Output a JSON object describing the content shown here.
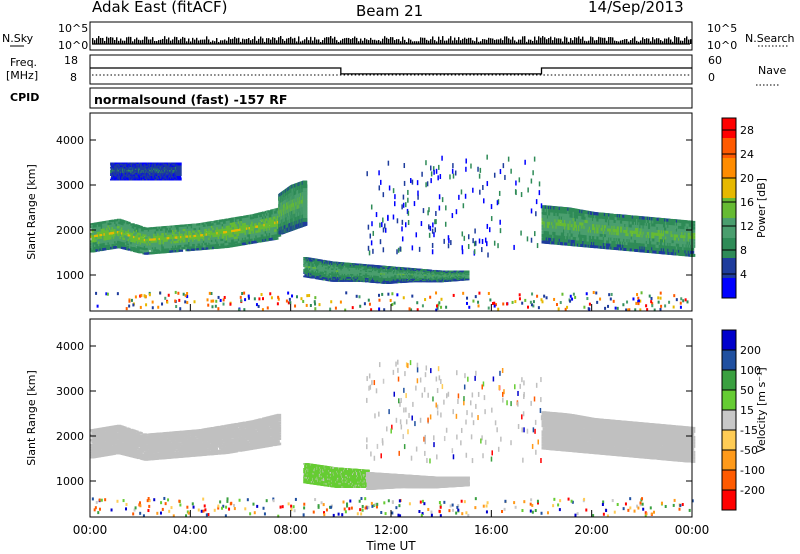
{
  "header": {
    "title": "Adak East (fitACF)",
    "beam": "Beam 21",
    "date": "14/Sep/2013"
  },
  "scan_panels": {
    "nsky": {
      "label": "N.Sky",
      "ticks": [
        "10^5",
        "10^0"
      ]
    },
    "nsearch": {
      "label": "N.Search",
      "ticks": [
        "10^5",
        "10^0"
      ]
    },
    "freq": {
      "label_line1": "Freq.",
      "label_line2": "[MHz]",
      "ticks": [
        "18",
        "8"
      ]
    },
    "nave": {
      "label": "Nave",
      "ticks": [
        "60",
        "0"
      ]
    },
    "cpid": {
      "label": "CPID",
      "text": "normalsound (fast) -157 RF"
    }
  },
  "colors": {
    "power": [
      "#0000ff",
      "#1e3c9c",
      "#2e8b57",
      "#4a9e6e",
      "#66bb33",
      "#e6b800",
      "#ff8c00",
      "#ff5a00",
      "#ff0000"
    ],
    "velocity": [
      "#ff0000",
      "#ff5a00",
      "#ff9a1a",
      "#ffcc55",
      "#c8c8c8",
      "#66cc33",
      "#3aa040",
      "#2050a0",
      "#0000cc"
    ],
    "ground": "#c0c0c0"
  },
  "chart_data": [
    {
      "type": "heatmap",
      "name": "power",
      "ylabel": "Slant Range [km]",
      "ytick_labels": [
        "1000",
        "2000",
        "3000",
        "4000"
      ],
      "ylim": [
        200,
        4600
      ],
      "colorbar": {
        "label": "Power [dB]",
        "ticks": [
          "4",
          "8",
          "12",
          "16",
          "20",
          "24",
          "28"
        ],
        "range": [
          0,
          30
        ]
      },
      "bands": [
        {
          "t0": 0.0,
          "t1": 7.5,
          "r0": [
            1500,
            1600,
            1450,
            1500,
            1550,
            1600,
            1700,
            1800
          ],
          "r1": [
            2150,
            2250,
            2050,
            2100,
            2150,
            2250,
            2350,
            2500
          ],
          "power": 16
        },
        {
          "t0": 7.5,
          "t1": 8.5,
          "r0": [
            1900,
            2000,
            2100
          ],
          "r1": [
            2800,
            3000,
            3100
          ],
          "power": 14
        },
        {
          "t0": 8.5,
          "t1": 15.0,
          "r0": [
            950,
            850,
            850,
            800,
            850,
            850,
            900
          ],
          "r1": [
            1400,
            1300,
            1250,
            1200,
            1150,
            1100,
            1100
          ],
          "power": 12
        },
        {
          "t0": 18.0,
          "t1": 24.0,
          "r0": [
            1700,
            1650,
            1600,
            1550,
            1500,
            1450,
            1400
          ],
          "r1": [
            2550,
            2500,
            2400,
            2350,
            2300,
            2250,
            2200
          ],
          "power": 14
        },
        {
          "t0": 0.8,
          "t1": 3.5,
          "r0": [
            3100,
            3100,
            3100
          ],
          "r1": [
            3500,
            3500,
            3500
          ],
          "power": 6
        }
      ]
    },
    {
      "type": "heatmap",
      "name": "velocity",
      "ylabel": "Slant Range [km]",
      "ytick_labels": [
        "1000",
        "2000",
        "3000",
        "4000"
      ],
      "ylim": [
        200,
        4600
      ],
      "xlabel": "Time UT",
      "xtick_labels": [
        "00:00",
        "04:00",
        "08:00",
        "12:00",
        "16:00",
        "20:00",
        "00:00"
      ],
      "xlim": [
        0,
        24
      ],
      "colorbar": {
        "label": "Velocity [m s⁻¹]",
        "ticks": [
          "200",
          "100",
          "50",
          "15",
          "-15",
          "-50",
          "-100",
          "-200"
        ],
        "range": [
          -250,
          250
        ]
      },
      "bands": [
        {
          "t0": 0.0,
          "t1": 7.5,
          "r0": [
            1500,
            1600,
            1450,
            1500,
            1550,
            1600,
            1700,
            1800
          ],
          "r1": [
            2150,
            2250,
            2050,
            2100,
            2150,
            2250,
            2350,
            2500
          ],
          "velocity": 0
        },
        {
          "t0": 8.5,
          "t1": 11.0,
          "r0": [
            950,
            850,
            850
          ],
          "r1": [
            1400,
            1300,
            1250
          ],
          "velocity": 40
        },
        {
          "t0": 11.0,
          "t1": 15.0,
          "r0": [
            800,
            850,
            850,
            900
          ],
          "r1": [
            1200,
            1150,
            1100,
            1100
          ],
          "velocity": 0
        },
        {
          "t0": 18.0,
          "t1": 24.0,
          "r0": [
            1700,
            1650,
            1600,
            1550,
            1500,
            1450,
            1400
          ],
          "r1": [
            2550,
            2500,
            2400,
            2350,
            2300,
            2250,
            2200
          ],
          "velocity": 0
        }
      ]
    }
  ],
  "scan_data": {
    "freq_mhz": [
      {
        "t0": 0,
        "t1": 10,
        "v": 11.5
      },
      {
        "t0": 10,
        "t1": 18,
        "v": 10.2
      },
      {
        "t0": 18,
        "t1": 24,
        "v": 11.5
      }
    ],
    "nave_dotted": 1,
    "nsky_level": 0.3
  }
}
